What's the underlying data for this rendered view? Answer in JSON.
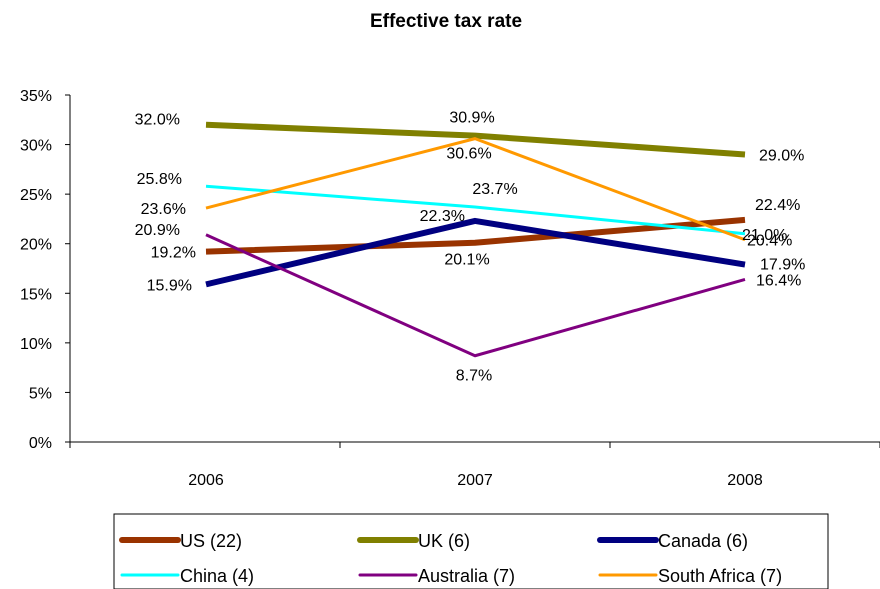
{
  "chart_data": {
    "type": "line",
    "title": "Effective tax rate",
    "categories": [
      "2006",
      "2007",
      "2008"
    ],
    "ylim": [
      0,
      35
    ],
    "yticks": [
      "0%",
      "5%",
      "10%",
      "15%",
      "20%",
      "25%",
      "30%",
      "35%"
    ],
    "grid": false,
    "legend_position": "bottom",
    "series": [
      {
        "name": "US (22)",
        "color": "#993300",
        "values": [
          19.2,
          20.1,
          22.4
        ],
        "labels": [
          "19.2%",
          "20.1%",
          "22.4%"
        ]
      },
      {
        "name": "UK (6)",
        "color": "#808000",
        "values": [
          32.0,
          30.9,
          29.0
        ],
        "labels": [
          "32.0%",
          "30.9%",
          "29.0%"
        ]
      },
      {
        "name": "Canada (6)",
        "color": "#000080",
        "values": [
          15.9,
          22.3,
          17.9
        ],
        "labels": [
          "15.9%",
          "22.3%",
          "17.9%"
        ]
      },
      {
        "name": "China (4)",
        "color": "#00FFFF",
        "values": [
          25.8,
          23.7,
          21.0
        ],
        "labels": [
          "25.8%",
          "23.7%",
          "21.0%"
        ]
      },
      {
        "name": "Australia (7)",
        "color": "#800080",
        "values": [
          20.9,
          8.7,
          16.4
        ],
        "labels": [
          "20.9%",
          "8.7%",
          "16.4%"
        ]
      },
      {
        "name": "South Africa (7)",
        "color": "#FF9900",
        "values": [
          23.6,
          30.6,
          20.4
        ],
        "labels": [
          "23.6%",
          "30.6%",
          "20.4%"
        ]
      }
    ]
  }
}
